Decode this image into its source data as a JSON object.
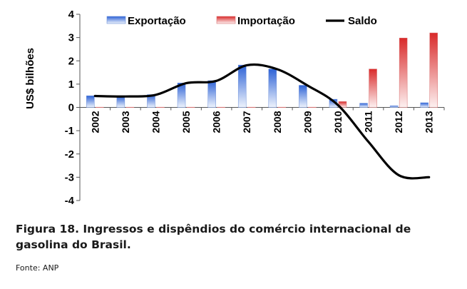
{
  "chart_data": {
    "type": "bar",
    "categories": [
      "2002",
      "2003",
      "2004",
      "2005",
      "2006",
      "2007",
      "2008",
      "2009",
      "2010",
      "2011",
      "2012",
      "2013"
    ],
    "ylabel": "US$ bilhões",
    "ylim": [
      -4,
      4
    ],
    "yticks": [
      4,
      3,
      2,
      1,
      0,
      -1,
      -2,
      -3,
      -4
    ],
    "legend_position": "top",
    "series": [
      {
        "name": "Exportação",
        "type": "bar",
        "color": "#3a6fd8",
        "values": [
          0.5,
          0.48,
          0.55,
          1.05,
          1.15,
          1.82,
          1.65,
          0.95,
          0.35,
          0.18,
          0.07,
          0.2
        ]
      },
      {
        "name": "Importação",
        "type": "bar",
        "color": "#d93434",
        "values": [
          0.01,
          0.01,
          0.01,
          0.01,
          0.01,
          0.01,
          0.01,
          0.01,
          0.25,
          1.65,
          2.98,
          3.2
        ]
      },
      {
        "name": "Saldo",
        "type": "line",
        "color": "#000000",
        "values": [
          0.49,
          0.47,
          0.54,
          1.04,
          1.14,
          1.81,
          1.64,
          0.94,
          0.1,
          -1.47,
          -2.91,
          -3.0
        ]
      }
    ]
  },
  "caption": {
    "title": "Figura 18. Ingressos e dispêndios do comércio internacional de gasolina do Brasil.",
    "source": "Fonte: ANP"
  }
}
